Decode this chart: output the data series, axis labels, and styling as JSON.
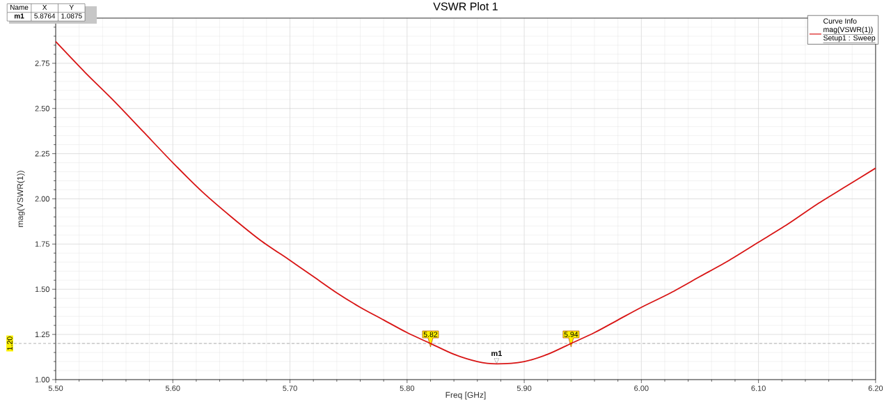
{
  "chart_data": {
    "type": "line",
    "title": "VSWR Plot 1",
    "xlabel": "Freq [GHz]",
    "ylabel": "mag(VSWR(1))",
    "legend_title": "Curve Info",
    "x": [
      5.5,
      5.525,
      5.55,
      5.575,
      5.6,
      5.625,
      5.65,
      5.675,
      5.7,
      5.72,
      5.74,
      5.76,
      5.78,
      5.8,
      5.82,
      5.84,
      5.86,
      5.8764,
      5.9,
      5.92,
      5.94,
      5.96,
      5.98,
      6.0,
      6.025,
      6.05,
      6.075,
      6.1,
      6.125,
      6.15,
      6.175,
      6.2
    ],
    "series": [
      {
        "name": "mag(VSWR(1))",
        "color": "#d81414",
        "values": [
          2.87,
          2.7,
          2.54,
          2.37,
          2.2,
          2.04,
          1.9,
          1.77,
          1.66,
          1.57,
          1.48,
          1.4,
          1.33,
          1.26,
          1.2,
          1.14,
          1.1,
          1.0875,
          1.1,
          1.14,
          1.2,
          1.26,
          1.33,
          1.4,
          1.48,
          1.57,
          1.66,
          1.76,
          1.86,
          1.97,
          2.07,
          2.17
        ]
      }
    ],
    "xlim": [
      5.5,
      6.2
    ],
    "xticks": [
      {
        "value": 5.5,
        "label": "5.50"
      },
      {
        "value": 5.52,
        "label": null
      },
      {
        "value": 5.54,
        "label": null
      },
      {
        "value": 5.56,
        "label": null
      },
      {
        "value": 5.58,
        "label": null
      },
      {
        "value": 5.6,
        "label": "5.60"
      },
      {
        "value": 5.62,
        "label": null
      },
      {
        "value": 5.64,
        "label": null
      },
      {
        "value": 5.66,
        "label": null
      },
      {
        "value": 5.68,
        "label": null
      },
      {
        "value": 5.7,
        "label": "5.70"
      },
      {
        "value": 5.72,
        "label": null
      },
      {
        "value": 5.74,
        "label": null
      },
      {
        "value": 5.76,
        "label": null
      },
      {
        "value": 5.78,
        "label": null
      },
      {
        "value": 5.8,
        "label": "5.80"
      },
      {
        "value": 5.82,
        "label": null
      },
      {
        "value": 5.84,
        "label": null
      },
      {
        "value": 5.86,
        "label": null
      },
      {
        "value": 5.88,
        "label": null
      },
      {
        "value": 5.9,
        "label": "5.90"
      },
      {
        "value": 5.92,
        "label": null
      },
      {
        "value": 5.94,
        "label": null
      },
      {
        "value": 5.96,
        "label": null
      },
      {
        "value": 5.98,
        "label": null
      },
      {
        "value": 6.0,
        "label": "6.00"
      },
      {
        "value": 6.02,
        "label": null
      },
      {
        "value": 6.04,
        "label": null
      },
      {
        "value": 6.06,
        "label": null
      },
      {
        "value": 6.08,
        "label": null
      },
      {
        "value": 6.1,
        "label": "6.10"
      },
      {
        "value": 6.12,
        "label": null
      },
      {
        "value": 6.14,
        "label": null
      },
      {
        "value": 6.16,
        "label": null
      },
      {
        "value": 6.18,
        "label": null
      },
      {
        "value": 6.2,
        "label": "6.20"
      }
    ],
    "ylim": [
      1,
      3
    ],
    "yticks": [
      {
        "value": 1,
        "label": "1.00"
      },
      {
        "value": 1.05,
        "label": null
      },
      {
        "value": 1.1,
        "label": null
      },
      {
        "value": 1.15,
        "label": null
      },
      {
        "value": 1.2,
        "label": null
      },
      {
        "value": 1.25,
        "label": "1.25"
      },
      {
        "value": 1.3,
        "label": null
      },
      {
        "value": 1.35,
        "label": null
      },
      {
        "value": 1.4,
        "label": null
      },
      {
        "value": 1.45,
        "label": null
      },
      {
        "value": 1.5,
        "label": "1.50"
      },
      {
        "value": 1.55,
        "label": null
      },
      {
        "value": 1.6,
        "label": null
      },
      {
        "value": 1.65,
        "label": null
      },
      {
        "value": 1.7,
        "label": null
      },
      {
        "value": 1.75,
        "label": "1.75"
      },
      {
        "value": 1.8,
        "label": null
      },
      {
        "value": 1.85,
        "label": null
      },
      {
        "value": 1.9,
        "label": null
      },
      {
        "value": 1.95,
        "label": null
      },
      {
        "value": 2,
        "label": "2.00"
      },
      {
        "value": 2.05,
        "label": null
      },
      {
        "value": 2.1,
        "label": null
      },
      {
        "value": 2.15,
        "label": null
      },
      {
        "value": 2.2,
        "label": null
      },
      {
        "value": 2.25,
        "label": "2.25"
      },
      {
        "value": 2.3,
        "label": null
      },
      {
        "value": 2.35,
        "label": null
      },
      {
        "value": 2.4,
        "label": null
      },
      {
        "value": 2.45,
        "label": null
      },
      {
        "value": 2.5,
        "label": "2.50"
      },
      {
        "value": 2.55,
        "label": null
      },
      {
        "value": 2.6,
        "label": null
      },
      {
        "value": 2.65,
        "label": null
      },
      {
        "value": 2.7,
        "label": null
      },
      {
        "value": 2.75,
        "label": "2.75"
      },
      {
        "value": 2.8,
        "label": null
      },
      {
        "value": 2.85,
        "label": null
      },
      {
        "value": 2.9,
        "label": null
      },
      {
        "value": 2.95,
        "label": null
      },
      {
        "value": 3,
        "label": null
      }
    ],
    "grid": true,
    "legend": "top right",
    "marker": "none",
    "line_style": "solid",
    "ref_lines": [
      {
        "axis": "y",
        "value": 1.2,
        "label": "1.20",
        "color": "#a0a0a0",
        "line_style": "dashed"
      }
    ],
    "annotations": [
      "Name",
      "X",
      "Y",
      "5.8764",
      "1.0875",
      {
        "text": "m1",
        "x": 5.8764,
        "y": 1.0875
      },
      {
        "text": "5.82",
        "x": 5.82,
        "y": 1.2
      },
      {
        "text": "5.94",
        "x": 5.94,
        "y": 1.2
      },
      "Setup1 : Sweep"
    ]
  }
}
